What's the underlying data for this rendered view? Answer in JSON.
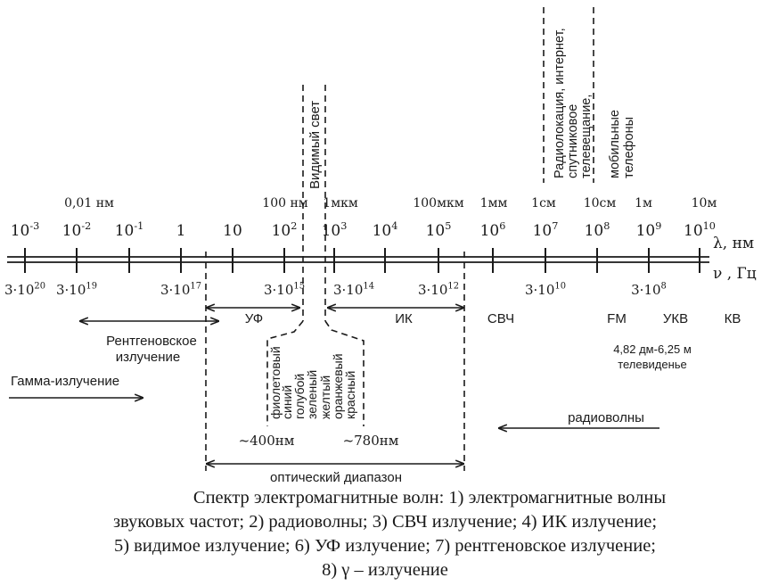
{
  "wavelength_labels": {
    "nm_0_01": "0,01 нм",
    "nm_100": "100 нм",
    "um_1": "1мкм",
    "um_100": "100мкм",
    "mm_1": "1мм",
    "cm_1": "1см",
    "cm_10": "10см",
    "m_1": "1м",
    "m_10": "10м"
  },
  "wavelength_ticks": [
    {
      "base": "10",
      "exp": "-3"
    },
    {
      "base": "10",
      "exp": "-2"
    },
    {
      "base": "10",
      "exp": "-1"
    },
    {
      "base": "1",
      "exp": ""
    },
    {
      "base": "10",
      "exp": ""
    },
    {
      "base": "10",
      "exp": "2"
    },
    {
      "base": "10",
      "exp": "3"
    },
    {
      "base": "10",
      "exp": "4"
    },
    {
      "base": "10",
      "exp": "5"
    },
    {
      "base": "10",
      "exp": "6"
    },
    {
      "base": "10",
      "exp": "7"
    },
    {
      "base": "10",
      "exp": "8"
    },
    {
      "base": "10",
      "exp": "9"
    },
    {
      "base": "10",
      "exp": "10"
    }
  ],
  "axis_labels": {
    "wavelength": "λ, нм",
    "frequency": "ν , Гц"
  },
  "frequency_ticks": [
    {
      "base": "3·10",
      "exp": "20"
    },
    {
      "base": "3·10",
      "exp": "19"
    },
    {
      "base": "3·10",
      "exp": "17"
    },
    {
      "base": "3·10",
      "exp": "15"
    },
    {
      "base": "3·10",
      "exp": "14"
    },
    {
      "base": "3·10",
      "exp": "12"
    },
    {
      "base": "3·10",
      "exp": "10"
    },
    {
      "base": "3·10",
      "exp": "8"
    }
  ],
  "regions": {
    "uv": "УФ",
    "ir": "ИК",
    "microwave": "СВЧ",
    "fm": "FM",
    "vhf": "УКВ",
    "hf": "КВ",
    "xray_line1": "Рентгеновское",
    "xray_line2": "излучение",
    "gamma": "Гамма-излучение",
    "radio": "радиоволны",
    "tv_line1": "4,82 дм-6,25 м",
    "tv_line2": "телевиденье",
    "optical": "оптический диапазон",
    "visible": "Видимый свет",
    "radar_line1": "Радиолокация, интернет,",
    "radar_line2": "спутниковое",
    "radar_line3": "телевещание,",
    "mobile_line1": "мобильные",
    "mobile_line2": "телефоны"
  },
  "visible_colors": [
    "фиолетовый",
    "синий",
    "голубой",
    "зеленый",
    "желтый",
    "оранжевый",
    "красный"
  ],
  "visible_bounds": {
    "left": "~400нм",
    "right": "~780нм"
  },
  "caption": {
    "line1": "Спектр электромагнитные волн: 1) электромагнитные волны",
    "line2": "звуковых частот; 2) радиоволны; 3) СВЧ излучение; 4) ИК излучение;",
    "line3": "5) видимое излучение; 6) УФ излучение; 7) рентгеновское излучение;",
    "line4": "8) γ – излучение"
  }
}
